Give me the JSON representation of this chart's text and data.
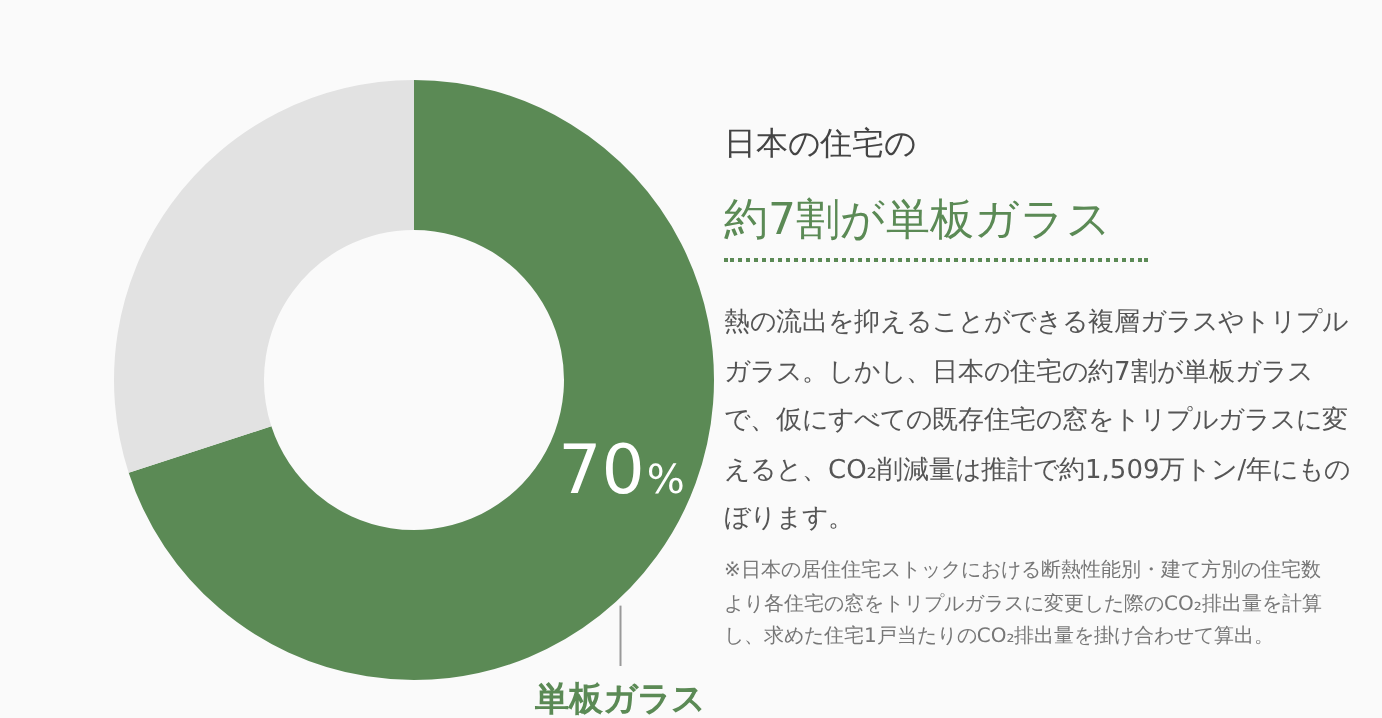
{
  "chart_data": {
    "type": "donut",
    "title": "日本の住宅の",
    "subtitle": "約7割が単板ガラス",
    "categories": [
      "単板ガラス",
      null
    ],
    "values": [
      70,
      30
    ],
    "colors": [
      "#5b8a55",
      "#e2e2e2"
    ],
    "value_labels": [
      "70%",
      null
    ],
    "legend": false,
    "annotations": [
      "熱の流出を抑えることができる複層ガラスやトリプルガラス。しかし、日本の住宅の約7割が単板ガラスで、仮にすべての既存住宅の窓をトリプルガラスに変えると、CO₂削減量は推計で約1,509万トン/年にものぼります。",
      "※日本の居住住宅ストックにおける断熱性能別・建て方別の住宅数より各住宅の窓をトリプルガラスに変更した際のCO₂排出量を計算し、求めた住宅1戸当たりのCO₂排出量を掛け合わせて算出。"
    ]
  }
}
